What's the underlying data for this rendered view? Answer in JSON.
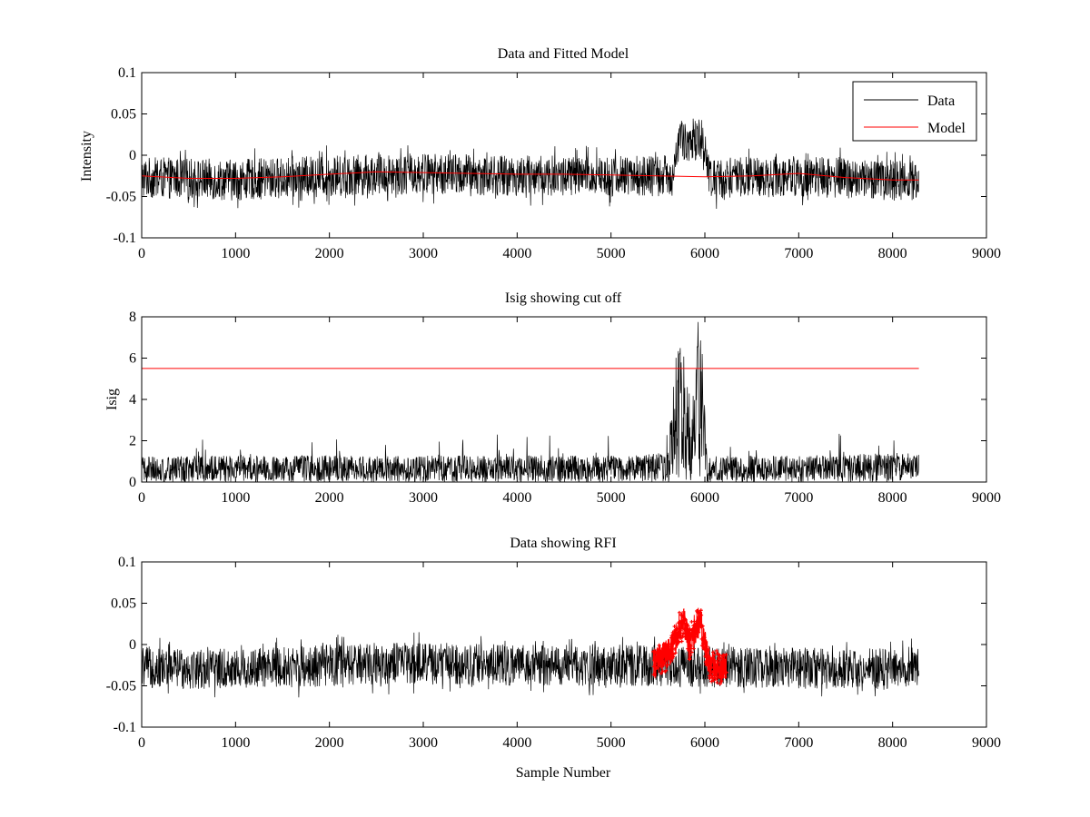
{
  "chart_data": [
    {
      "type": "line",
      "title": "Data and Fitted Model",
      "xlabel": "",
      "ylabel": "Intensity",
      "xlim": [
        0,
        9000
      ],
      "ylim": [
        -0.1,
        0.1
      ],
      "xticks": [
        0,
        1000,
        2000,
        3000,
        4000,
        5000,
        6000,
        7000,
        8000,
        9000
      ],
      "yticks": [
        -0.1,
        -0.05,
        0,
        0.05,
        0.1
      ],
      "yticklabels": [
        "-0.1",
        "-0.05",
        "0",
        "0.05",
        "0.1"
      ],
      "legend": {
        "placement": "top-right",
        "entries": [
          "Data",
          "Model"
        ]
      },
      "grid": false,
      "series": [
        {
          "name": "Data",
          "color": "#000000",
          "style": "noisy-line",
          "x_range": [
            0,
            8280
          ],
          "baseline": [
            [
              0,
              -0.027
            ],
            [
              1000,
              -0.03
            ],
            [
              2000,
              -0.025
            ],
            [
              3000,
              -0.022
            ],
            [
              4000,
              -0.025
            ],
            [
              5000,
              -0.025
            ],
            [
              5650,
              -0.025
            ],
            [
              5720,
              0.015
            ],
            [
              5780,
              0.02
            ],
            [
              5830,
              0.005
            ],
            [
              5930,
              0.025
            ],
            [
              5990,
              0.015
            ],
            [
              6050,
              -0.028
            ],
            [
              7000,
              -0.025
            ],
            [
              8000,
              -0.03
            ],
            [
              8280,
              -0.03
            ]
          ],
          "noise_amplitude": 0.025
        },
        {
          "name": "Model",
          "color": "#ff0000",
          "points": [
            [
              0,
              -0.025
            ],
            [
              500,
              -0.028
            ],
            [
              1000,
              -0.028
            ],
            [
              1500,
              -0.026
            ],
            [
              2000,
              -0.023
            ],
            [
              2500,
              -0.02
            ],
            [
              3000,
              -0.021
            ],
            [
              3500,
              -0.022
            ],
            [
              4000,
              -0.023
            ],
            [
              4500,
              -0.023
            ],
            [
              5000,
              -0.024
            ],
            [
              5500,
              -0.025
            ],
            [
              6000,
              -0.026
            ],
            [
              6500,
              -0.025
            ],
            [
              7000,
              -0.022
            ],
            [
              7500,
              -0.027
            ],
            [
              8000,
              -0.03
            ],
            [
              8280,
              -0.03
            ]
          ]
        }
      ]
    },
    {
      "type": "line",
      "title": "Isig showing cut off",
      "xlabel": "",
      "ylabel": "Isig",
      "xlim": [
        0,
        9000
      ],
      "ylim": [
        0,
        8
      ],
      "xticks": [
        0,
        1000,
        2000,
        3000,
        4000,
        5000,
        6000,
        7000,
        8000,
        9000
      ],
      "yticks": [
        0,
        2,
        4,
        6,
        8
      ],
      "yticklabels": [
        "0",
        "2",
        "4",
        "6",
        "8"
      ],
      "grid": false,
      "series": [
        {
          "color": "#000000",
          "style": "noisy-positive",
          "x_range": [
            0,
            8280
          ],
          "baseline": [
            [
              0,
              0.8
            ],
            [
              1000,
              0.8
            ],
            [
              2000,
              0.8
            ],
            [
              3000,
              0.8
            ],
            [
              4000,
              0.8
            ],
            [
              5000,
              0.8
            ],
            [
              5600,
              0.9
            ],
            [
              5700,
              4.0
            ],
            [
              5750,
              4.8
            ],
            [
              5800,
              3.0
            ],
            [
              5880,
              3.0
            ],
            [
              5930,
              5.0
            ],
            [
              5990,
              3.5
            ],
            [
              6020,
              0.8
            ],
            [
              7000,
              0.8
            ],
            [
              8280,
              0.9
            ]
          ],
          "noise_amplitude": 1.0,
          "peaks": [
            [
              5730,
              6.2
            ],
            [
              5920,
              6.55
            ]
          ]
        },
        {
          "color": "#ff0000",
          "points": [
            [
              0,
              5.5
            ],
            [
              8280,
              5.5
            ]
          ]
        }
      ]
    },
    {
      "type": "line",
      "title": "Data showing RFI",
      "xlabel": "Sample Number",
      "ylabel": "",
      "xlim": [
        0,
        9000
      ],
      "ylim": [
        -0.1,
        0.1
      ],
      "xticks": [
        0,
        1000,
        2000,
        3000,
        4000,
        5000,
        6000,
        7000,
        8000,
        9000
      ],
      "yticks": [
        -0.1,
        -0.05,
        0,
        0.05,
        0.1
      ],
      "yticklabels": [
        "-0.1",
        "-0.05",
        "0",
        "0.05",
        "0.1"
      ],
      "grid": false,
      "series": [
        {
          "color": "#000000",
          "style": "noisy-line",
          "x_range": [
            0,
            8280
          ],
          "baseline": [
            [
              0,
              -0.027
            ],
            [
              1000,
              -0.03
            ],
            [
              2000,
              -0.025
            ],
            [
              3000,
              -0.022
            ],
            [
              4000,
              -0.025
            ],
            [
              5000,
              -0.025
            ],
            [
              8000,
              -0.03
            ],
            [
              8280,
              -0.03
            ]
          ],
          "noise_amplitude": 0.025
        },
        {
          "color": "#ff0000",
          "style": "marker-band",
          "x_range": [
            5450,
            6230
          ],
          "baseline": [
            [
              5450,
              -0.025
            ],
            [
              5550,
              -0.018
            ],
            [
              5650,
              -0.005
            ],
            [
              5730,
              0.02
            ],
            [
              5780,
              0.025
            ],
            [
              5830,
              0.0
            ],
            [
              5900,
              0.02
            ],
            [
              5950,
              0.03
            ],
            [
              6000,
              0.0
            ],
            [
              6050,
              -0.025
            ],
            [
              6150,
              -0.028
            ],
            [
              6230,
              -0.03
            ]
          ],
          "noise_amplitude": 0.02
        }
      ]
    }
  ]
}
